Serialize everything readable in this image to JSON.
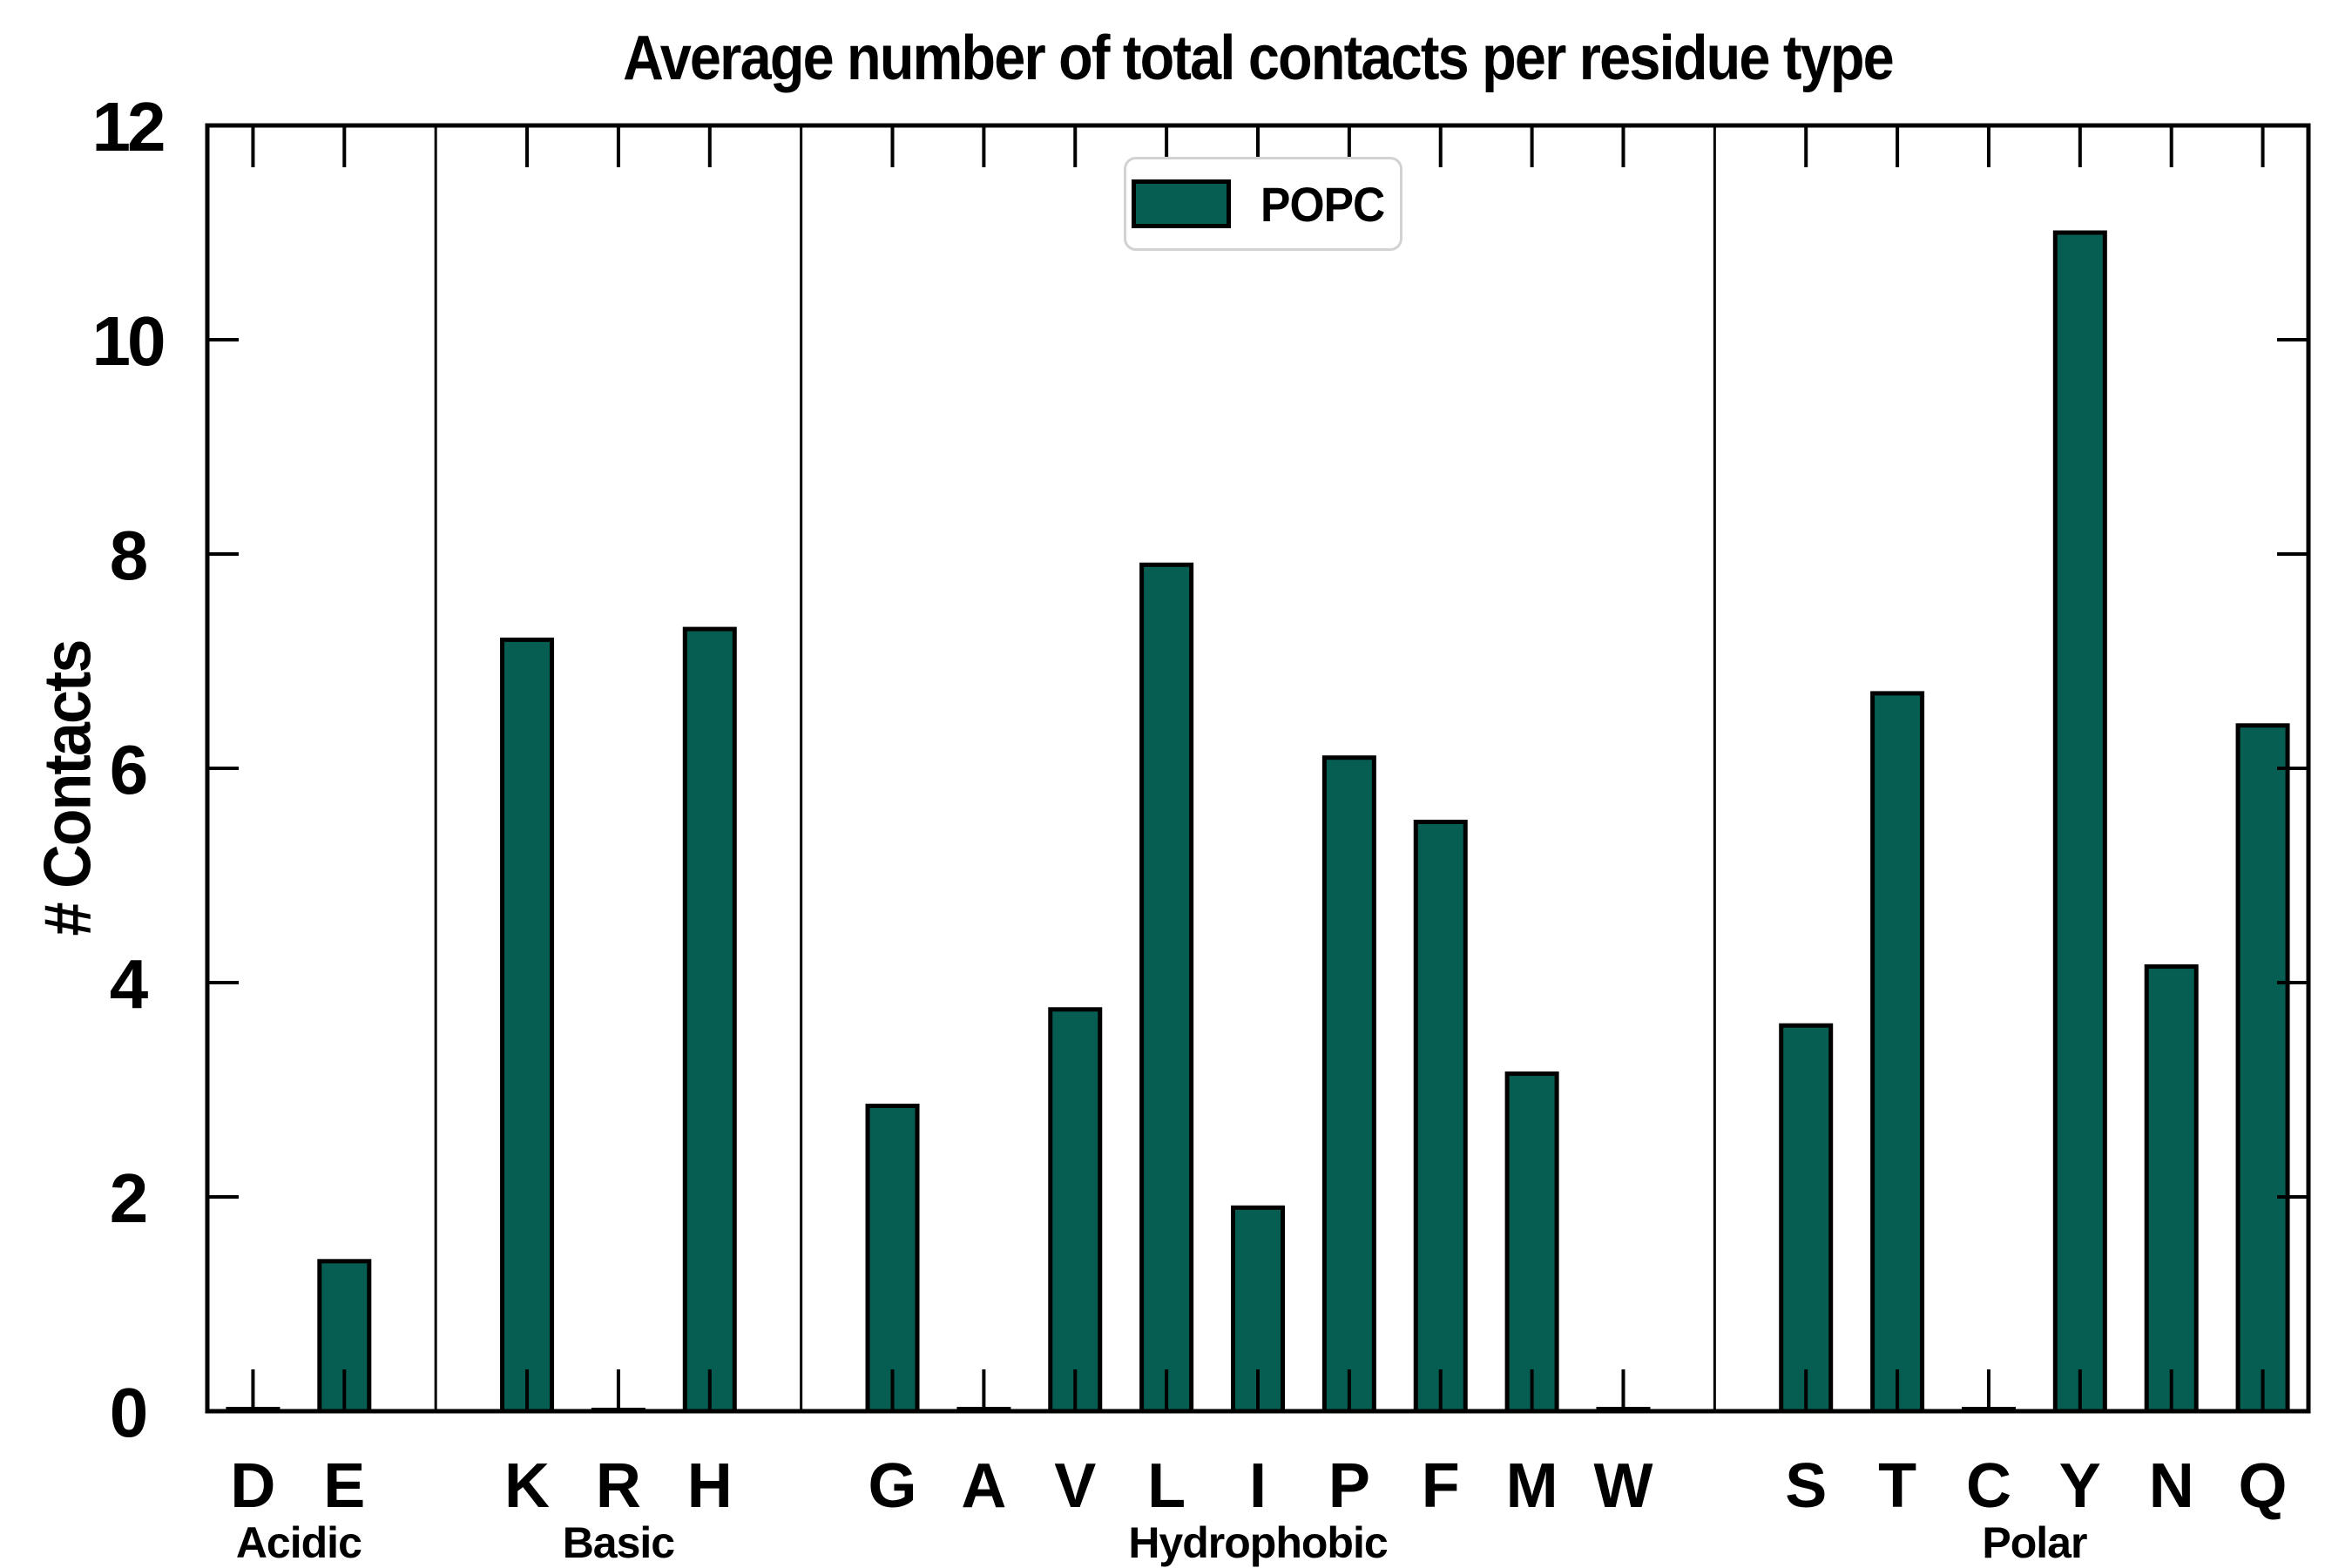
{
  "title": "Average number of total contacts per residue type",
  "ylabel": "# Contacts",
  "legend": {
    "label": "POPC"
  },
  "colors": {
    "bar_fill": "#065e52",
    "bar_edge": "#000000",
    "axis": "#000000",
    "divider": "#000000",
    "legend_border": "#d2d2d2",
    "background": "#ffffff"
  },
  "chart_data": {
    "type": "bar",
    "title": "Average number of total contacts per residue type",
    "xlabel": "",
    "ylabel": "# Contacts",
    "ylim": [
      0,
      12
    ],
    "yticks": [
      0,
      2,
      4,
      6,
      8,
      10,
      12
    ],
    "grid": false,
    "legend_position": "upper center",
    "series_name": "POPC",
    "bar_color": "#065e52",
    "groups": [
      {
        "label": "Acidic",
        "categories": [
          "D",
          "E"
        ],
        "values": [
          0.02,
          1.4
        ]
      },
      {
        "label": "Basic",
        "categories": [
          "K",
          "R",
          "H"
        ],
        "values": [
          7.2,
          0.01,
          7.3
        ]
      },
      {
        "label": "Hydrophobic",
        "categories": [
          "G",
          "A",
          "V",
          "L",
          "I",
          "P",
          "F",
          "M",
          "W"
        ],
        "values": [
          2.85,
          0.02,
          3.75,
          7.9,
          1.9,
          6.1,
          5.5,
          3.15,
          0.02
        ]
      },
      {
        "label": "Polar",
        "categories": [
          "S",
          "T",
          "C",
          "Y",
          "N",
          "Q"
        ],
        "values": [
          3.6,
          6.7,
          0.02,
          11.0,
          4.15,
          6.4
        ]
      }
    ]
  }
}
